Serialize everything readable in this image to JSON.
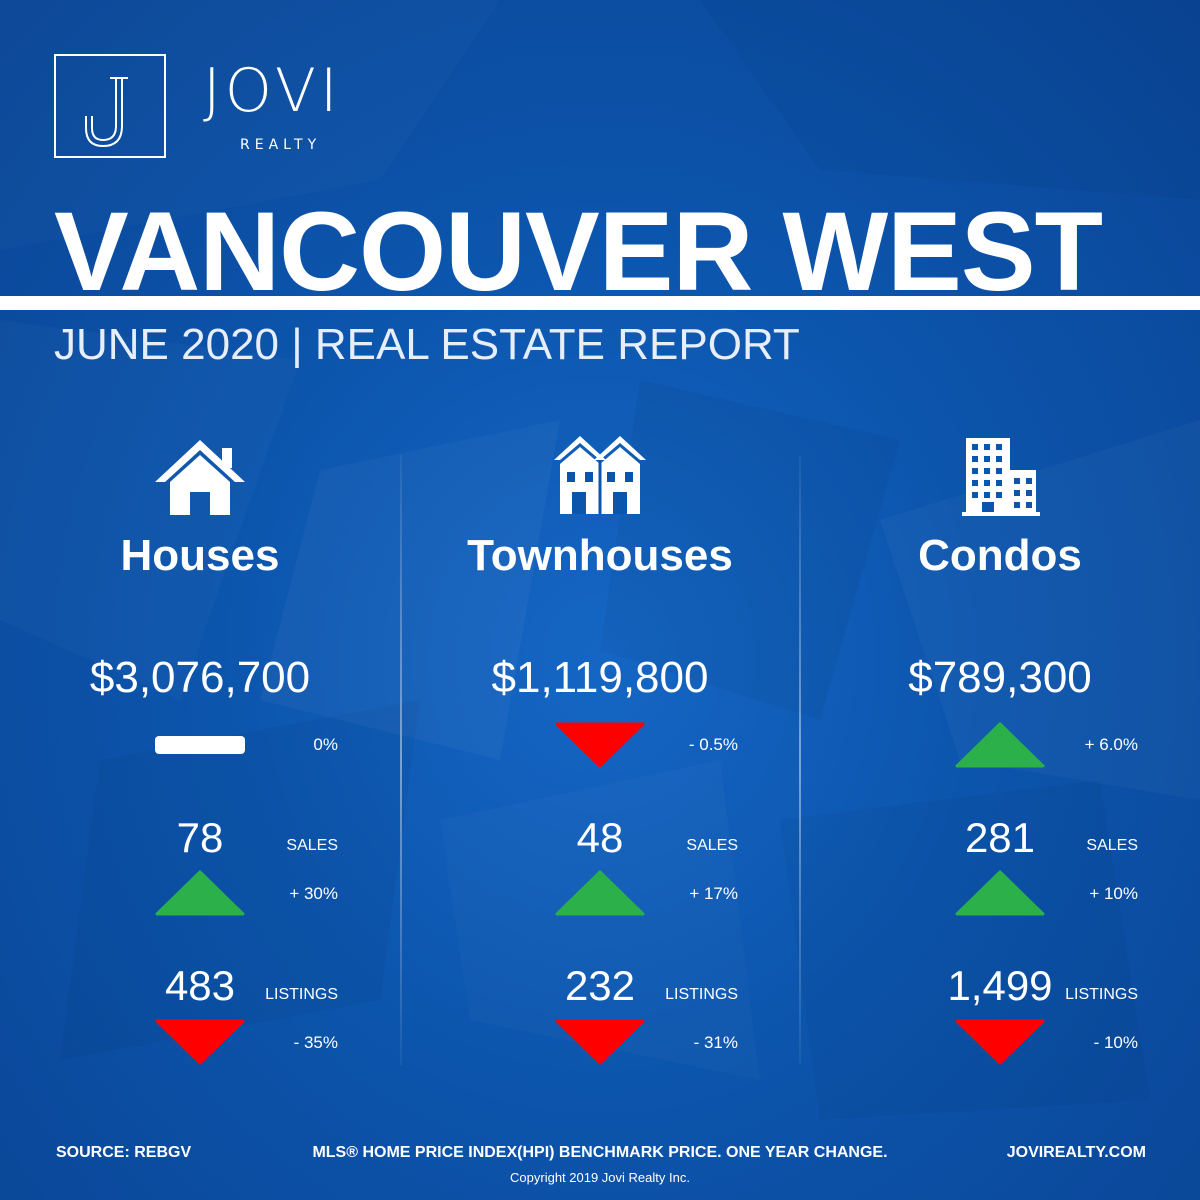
{
  "brand": {
    "logo_letter": "J",
    "name": "JOVI",
    "sub": "REALTY"
  },
  "title": "VANCOUVER WEST",
  "subtitle": "JUNE 2020 | REAL ESTATE REPORT",
  "colors": {
    "background": "#0c55ad",
    "up": "#2bb04a",
    "down": "#ff0000",
    "flat": "#ffffff"
  },
  "columns": [
    {
      "name": "Houses",
      "icon": "house-icon",
      "price": "$3,076,700",
      "price_change": "0%",
      "price_trend": "flat",
      "sales": "78",
      "sales_label": "SALES",
      "sales_change": "+ 30%",
      "sales_trend": "up",
      "listings": "483",
      "listings_label": "LISTINGS",
      "listings_change": "- 35%",
      "listings_trend": "down"
    },
    {
      "name": "Townhouses",
      "icon": "townhouse-icon",
      "price": "$1,119,800",
      "price_change": "- 0.5%",
      "price_trend": "down",
      "sales": "48",
      "sales_label": "SALES",
      "sales_change": "+ 17%",
      "sales_trend": "up",
      "listings": "232",
      "listings_label": "LISTINGS",
      "listings_change": "- 31%",
      "listings_trend": "down"
    },
    {
      "name": "Condos",
      "icon": "condo-building-icon",
      "price": "$789,300",
      "price_change": "+ 6.0%",
      "price_trend": "up",
      "sales": "281",
      "sales_label": "SALES",
      "sales_change": "+ 10%",
      "sales_trend": "up",
      "listings": "1,499",
      "listings_label": "LISTINGS",
      "listings_change": "- 10%",
      "listings_trend": "down"
    }
  ],
  "footer": {
    "source": "SOURCE:  REBGV",
    "note": "MLS® HOME PRICE INDEX(HPI) BENCHMARK PRICE. ONE YEAR CHANGE.",
    "website": "JOVIREALTY.COM",
    "copyright": "Copyright 2019 Jovi Realty Inc."
  }
}
